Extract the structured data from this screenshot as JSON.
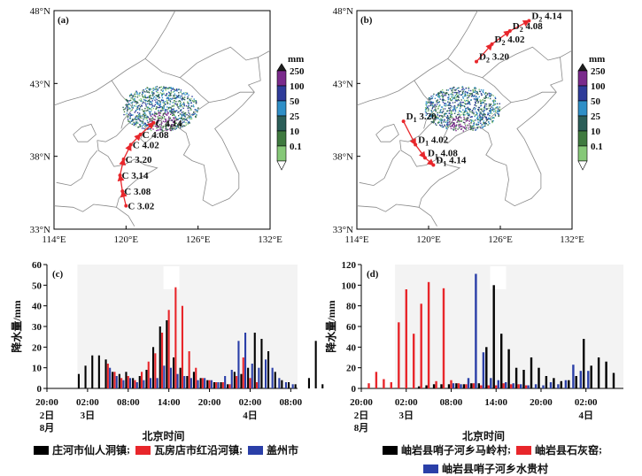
{
  "map_panels": [
    {
      "label": "(a)",
      "lat_ticks": [
        "48°N",
        "43°N",
        "38°N",
        "33°N"
      ],
      "lon_ticks": [
        "114°E",
        "120°E",
        "126°E",
        "132°E"
      ],
      "colorbar": {
        "unit": "mm",
        "levels": [
          "250",
          "100",
          "50",
          "25",
          "10",
          "0.1"
        ],
        "colors": [
          "#1f1f1f",
          "#7a2a8c",
          "#2f3c9a",
          "#2f8fc7",
          "#2b5e58",
          "#3f7a3f",
          "#86c878",
          "#ffffff"
        ]
      },
      "track": [
        {
          "text": "C 3.02",
          "lon": 120.0,
          "lat": 34.6
        },
        {
          "text": "C 3.08",
          "lon": 119.7,
          "lat": 35.6
        },
        {
          "text": "C 3.14",
          "lon": 119.5,
          "lat": 36.7
        },
        {
          "text": "C 3.20",
          "lon": 119.8,
          "lat": 37.8
        },
        {
          "text": "C 4.02",
          "lon": 120.4,
          "lat": 38.8
        },
        {
          "text": "C 4.08",
          "lon": 121.2,
          "lat": 39.5
        },
        {
          "text": "C 4.14",
          "lon": 122.3,
          "lat": 40.3
        }
      ]
    },
    {
      "label": "(b)",
      "lat_ticks": [
        "48°N",
        "43°N",
        "38°N",
        "33°N"
      ],
      "lon_ticks": [
        "114°E",
        "120°E",
        "126°E",
        "132°E"
      ],
      "colorbar": {
        "unit": "mm",
        "levels": [
          "250",
          "100",
          "50",
          "25",
          "10",
          "0.1"
        ],
        "colors": [
          "#1f1f1f",
          "#7a2a8c",
          "#2f3c9a",
          "#2f8fc7",
          "#2b5e58",
          "#3f7a3f",
          "#86c878",
          "#ffffff"
        ]
      },
      "track_south": [
        {
          "sub": "1",
          "time": "3.20",
          "lon": 117.9,
          "lat": 40.4
        },
        {
          "sub": "1",
          "time": "4.02",
          "lon": 118.9,
          "lat": 38.8
        },
        {
          "sub": "1",
          "time": "4.08",
          "lon": 119.7,
          "lat": 37.9
        },
        {
          "sub": "1",
          "time": "4.14",
          "lon": 120.4,
          "lat": 37.4
        }
      ],
      "track_north": [
        {
          "sub": "2",
          "time": "3.20",
          "lon": 124.0,
          "lat": 44.5
        },
        {
          "sub": "2",
          "time": "4.02",
          "lon": 125.3,
          "lat": 45.7
        },
        {
          "sub": "2",
          "time": "4.08",
          "lon": 126.8,
          "lat": 46.6
        },
        {
          "sub": "2",
          "time": "4.14",
          "lon": 128.4,
          "lat": 47.3
        }
      ]
    }
  ],
  "chart_data": [
    {
      "label": "(c)",
      "type": "bar",
      "ylabel": "降水量/mm",
      "xlabel": "北京时间",
      "ylim": [
        0,
        60
      ],
      "yticks": [
        "0",
        "10",
        "20",
        "30",
        "40",
        "50",
        "60"
      ],
      "x_hours_since_start": [
        0,
        6,
        12,
        18,
        24,
        30,
        36
      ],
      "xticks": [
        "20:00",
        "02:00",
        "08:00",
        "14:00",
        "20:00",
        "02:00",
        "08:00"
      ],
      "xsub": [
        {
          "text": "2日",
          "at": 0
        },
        {
          "text": "3日",
          "at": 6
        },
        {
          "text": "4日",
          "at": 30
        }
      ],
      "xsub2": [
        {
          "text": "8月",
          "at": 0
        }
      ],
      "bar_width_hours": 0.28,
      "series": [
        {
          "name": "庄河市仙人洞镇",
          "color": "#000000",
          "offset": -0.3,
          "data": [
            [
              5,
              7
            ],
            [
              6,
              11
            ],
            [
              7,
              16
            ],
            [
              8,
              16
            ],
            [
              9,
              14
            ],
            [
              10,
              8
            ],
            [
              11,
              7
            ],
            [
              12,
              8
            ],
            [
              13,
              5
            ],
            [
              14,
              6
            ],
            [
              15,
              9
            ],
            [
              16,
              20
            ],
            [
              17,
              30
            ],
            [
              18,
              33
            ],
            [
              19,
              15
            ],
            [
              20,
              10
            ],
            [
              21,
              6
            ],
            [
              22,
              8
            ],
            [
              23,
              5
            ],
            [
              24,
              4
            ],
            [
              25,
              3
            ],
            [
              26,
              3
            ],
            [
              27,
              2
            ],
            [
              28,
              8
            ],
            [
              29,
              7
            ],
            [
              30,
              10
            ],
            [
              31,
              27
            ],
            [
              32,
              24
            ],
            [
              33,
              18
            ],
            [
              34,
              8
            ],
            [
              35,
              4
            ],
            [
              36,
              3
            ],
            [
              37,
              2
            ],
            [
              39,
              5
            ],
            [
              40,
              23
            ],
            [
              41,
              2
            ]
          ]
        },
        {
          "name": "瓦房店市红沿河镇",
          "color": "#e8262b",
          "offset": 0,
          "data": [
            [
              9,
              12
            ],
            [
              10,
              8
            ],
            [
              11,
              5
            ],
            [
              12,
              6
            ],
            [
              13,
              4
            ],
            [
              14,
              8
            ],
            [
              15,
              13
            ],
            [
              16,
              17
            ],
            [
              17,
              27
            ],
            [
              18,
              38
            ],
            [
              19,
              49
            ],
            [
              20,
              40
            ],
            [
              21,
              18
            ],
            [
              22,
              10
            ],
            [
              23,
              5
            ],
            [
              24,
              4
            ],
            [
              25,
              3
            ],
            [
              26,
              3
            ],
            [
              27,
              2
            ],
            [
              28,
              6
            ],
            [
              29,
              15
            ],
            [
              30,
              5
            ],
            [
              31,
              3
            ]
          ]
        },
        {
          "name": "盖州市",
          "color": "#2a3fa8",
          "offset": 0.3,
          "data": [
            [
              9,
              10
            ],
            [
              10,
              6
            ],
            [
              11,
              4
            ],
            [
              12,
              5
            ],
            [
              13,
              3
            ],
            [
              14,
              4
            ],
            [
              15,
              5
            ],
            [
              16,
              5
            ],
            [
              17,
              11
            ],
            [
              18,
              10
            ],
            [
              19,
              7
            ],
            [
              20,
              6
            ],
            [
              21,
              5
            ],
            [
              22,
              4
            ],
            [
              23,
              5
            ],
            [
              24,
              4
            ],
            [
              25,
              3
            ],
            [
              26,
              6
            ],
            [
              27,
              9
            ],
            [
              28,
              23
            ],
            [
              29,
              27
            ],
            [
              30,
              12
            ],
            [
              31,
              10
            ],
            [
              32,
              14
            ],
            [
              33,
              10
            ],
            [
              34,
              5
            ],
            [
              35,
              3
            ],
            [
              36,
              2
            ]
          ]
        }
      ]
    },
    {
      "label": "(d)",
      "type": "bar",
      "ylabel": "降水量/mm",
      "xlabel": "北京时间",
      "ylim": [
        0,
        120
      ],
      "yticks": [
        "0",
        "20",
        "40",
        "60",
        "80",
        "100",
        "120"
      ],
      "x_hours_since_start": [
        0,
        6,
        12,
        18,
        24,
        30
      ],
      "xticks": [
        "20:00",
        "02:00",
        "08:00",
        "14:00",
        "20:00",
        "02:00"
      ],
      "xsub": [
        {
          "text": "2日",
          "at": 0
        },
        {
          "text": "3日",
          "at": 6
        },
        {
          "text": "4日",
          "at": 30
        }
      ],
      "xsub2": [
        {
          "text": "8月",
          "at": 0
        }
      ],
      "bar_width_hours": 0.28,
      "series": [
        {
          "name": "岫岩县哨子河乡马岭村",
          "color": "#000000",
          "offset": -0.3,
          "data": [
            [
              8,
              2
            ],
            [
              9,
              3
            ],
            [
              10,
              4
            ],
            [
              11,
              4
            ],
            [
              12,
              4
            ],
            [
              13,
              5
            ],
            [
              14,
              4
            ],
            [
              15,
              5
            ],
            [
              16,
              5
            ],
            [
              17,
              40
            ],
            [
              18,
              100
            ],
            [
              19,
              53
            ],
            [
              20,
              38
            ],
            [
              21,
              20
            ],
            [
              22,
              18
            ],
            [
              23,
              30
            ],
            [
              24,
              20
            ],
            [
              25,
              12
            ],
            [
              26,
              10
            ],
            [
              27,
              7
            ],
            [
              28,
              8
            ],
            [
              29,
              12
            ],
            [
              30,
              48
            ],
            [
              31,
              22
            ],
            [
              32,
              30
            ],
            [
              33,
              26
            ],
            [
              34,
              15
            ]
          ]
        },
        {
          "name": "岫岩县石灰窑",
          "color": "#e8262b",
          "offset": 0,
          "data": [
            [
              1,
              5
            ],
            [
              2,
              16
            ],
            [
              3,
              9
            ],
            [
              4,
              6
            ],
            [
              5,
              64
            ],
            [
              6,
              96
            ],
            [
              7,
              53
            ],
            [
              8,
              82
            ],
            [
              9,
              103
            ],
            [
              10,
              7
            ],
            [
              11,
              97
            ],
            [
              12,
              8
            ],
            [
              13,
              5
            ],
            [
              14,
              4
            ],
            [
              15,
              5
            ],
            [
              16,
              3
            ],
            [
              17,
              3
            ],
            [
              18,
              3
            ],
            [
              19,
              5
            ],
            [
              20,
              4
            ],
            [
              21,
              4
            ],
            [
              22,
              3
            ]
          ]
        },
        {
          "name": "岫岩县哨子河乡水贵村",
          "color": "#2a3fa8",
          "offset": 0.3,
          "data": [
            [
              12,
              5
            ],
            [
              13,
              4
            ],
            [
              14,
              10
            ],
            [
              15,
              111
            ],
            [
              16,
              35
            ],
            [
              17,
              10
            ],
            [
              18,
              8
            ],
            [
              19,
              6
            ],
            [
              20,
              5
            ],
            [
              21,
              4
            ],
            [
              22,
              3
            ],
            [
              23,
              4
            ],
            [
              24,
              3
            ],
            [
              25,
              6
            ],
            [
              26,
              4
            ],
            [
              27,
              8
            ],
            [
              28,
              23
            ],
            [
              29,
              17
            ],
            [
              30,
              17
            ]
          ]
        }
      ]
    }
  ]
}
